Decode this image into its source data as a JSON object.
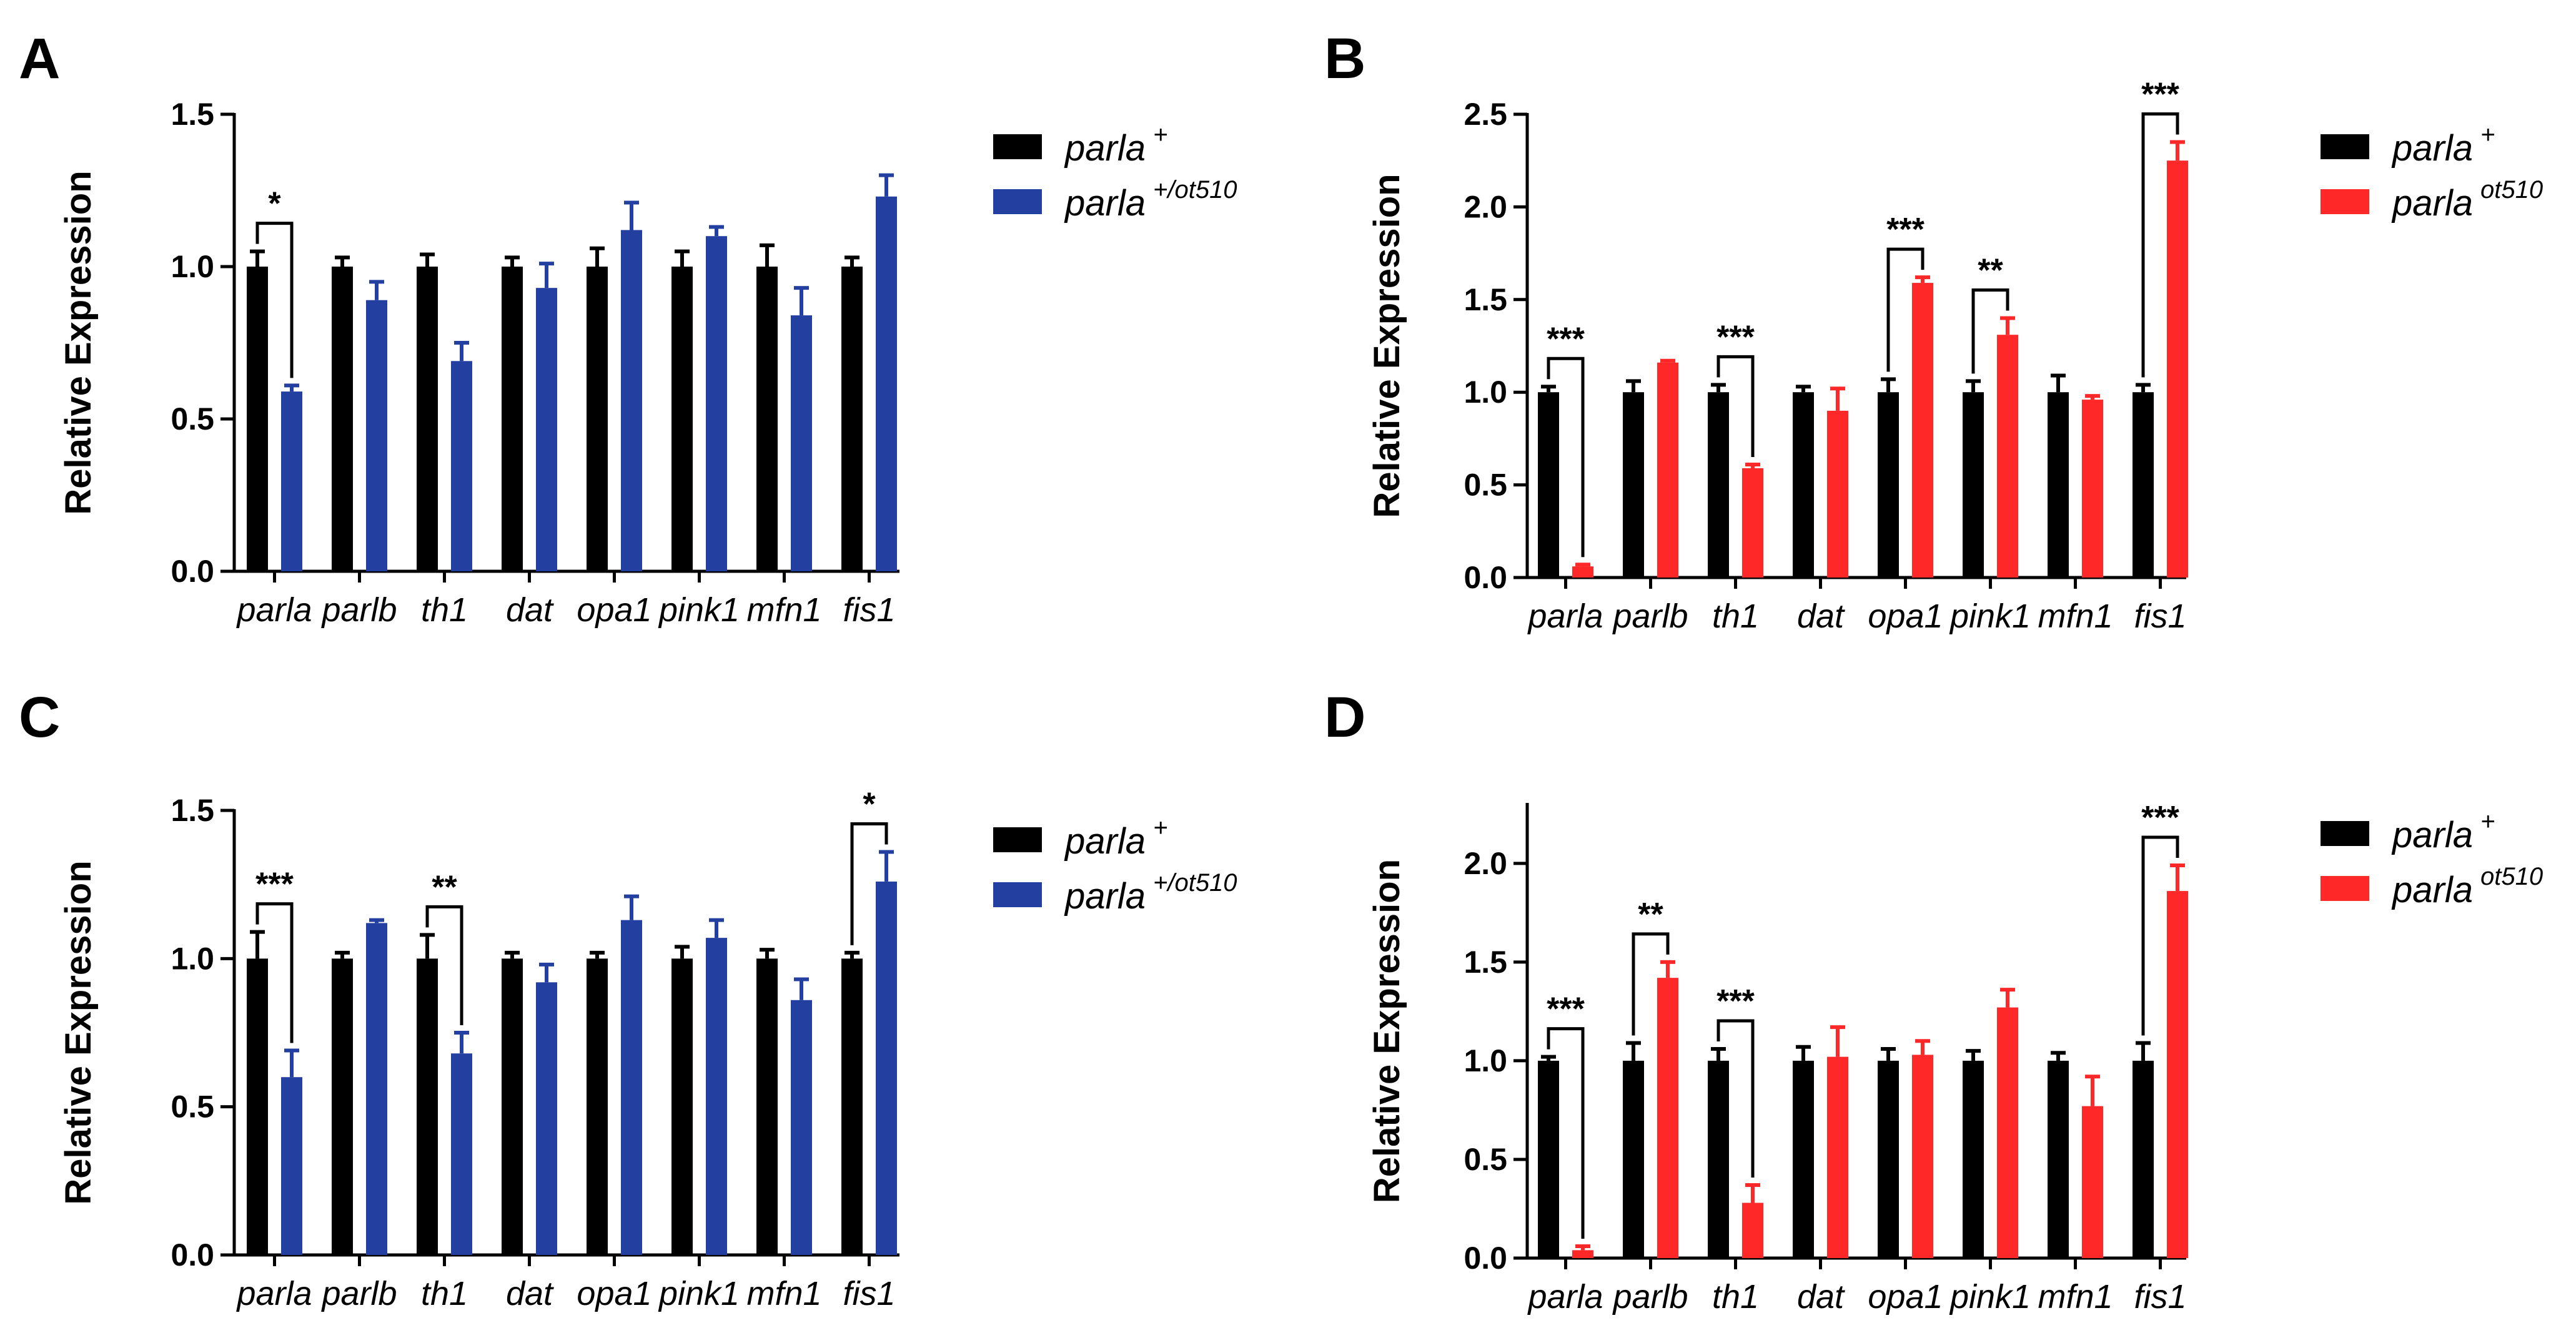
{
  "colors": {
    "wt": "#000000",
    "blue": "#2340A0",
    "red": "#FF2828"
  },
  "chart_data": [
    {
      "panel": "A",
      "type": "bar",
      "ylabel": "Relative Expression",
      "ylim": [
        0,
        1.5
      ],
      "yticks": [
        "0.0",
        "0.5",
        "1.0",
        "1.5"
      ],
      "ytick_values": [
        0,
        0.5,
        1.0,
        1.5
      ],
      "categories": [
        "parla",
        "parlb",
        "th1",
        "dat",
        "opa1",
        "pink1",
        "mfn1",
        "fis1"
      ],
      "series": [
        {
          "name": "parla",
          "sup": "+",
          "color": "#000000",
          "values": [
            1.0,
            1.0,
            1.0,
            1.0,
            1.0,
            1.0,
            1.0,
            1.0
          ],
          "errors": [
            0.05,
            0.03,
            0.04,
            0.03,
            0.06,
            0.05,
            0.07,
            0.03
          ]
        },
        {
          "name": "parla",
          "sup": "+/ot510",
          "color": "#2340A0",
          "values": [
            0.59,
            0.89,
            0.69,
            0.93,
            1.12,
            1.1,
            0.84,
            1.23
          ],
          "errors": [
            0.02,
            0.06,
            0.06,
            0.08,
            0.09,
            0.03,
            0.09,
            0.07
          ]
        }
      ],
      "significance": [
        {
          "index": 0,
          "label": "*"
        }
      ]
    },
    {
      "panel": "B",
      "type": "bar",
      "ylabel": "Relative Expression",
      "ylim": [
        0,
        2.5
      ],
      "yticks": [
        "0.0",
        "0.5",
        "1.0",
        "1.5",
        "2.0",
        "2.5"
      ],
      "ytick_values": [
        0,
        0.5,
        1.0,
        1.5,
        2.0,
        2.5
      ],
      "categories": [
        "parla",
        "parlb",
        "th1",
        "dat",
        "opa1",
        "pink1",
        "mfn1",
        "fis1"
      ],
      "series": [
        {
          "name": "parla",
          "sup": "+",
          "color": "#000000",
          "values": [
            1.0,
            1.0,
            1.0,
            1.0,
            1.0,
            1.0,
            1.0,
            1.0
          ],
          "errors": [
            0.03,
            0.06,
            0.04,
            0.03,
            0.07,
            0.06,
            0.09,
            0.04
          ]
        },
        {
          "name": "parla",
          "sup": "ot510",
          "color": "#FF2828",
          "values": [
            0.06,
            1.16,
            0.59,
            0.9,
            1.59,
            1.31,
            0.96,
            2.25
          ],
          "errors": [
            0.01,
            0.01,
            0.02,
            0.12,
            0.03,
            0.09,
            0.02,
            0.1
          ]
        }
      ],
      "significance": [
        {
          "index": 0,
          "label": "***"
        },
        {
          "index": 2,
          "label": "***"
        },
        {
          "index": 4,
          "label": "***"
        },
        {
          "index": 5,
          "label": "**"
        },
        {
          "index": 7,
          "label": "***"
        }
      ]
    },
    {
      "panel": "C",
      "type": "bar",
      "ylabel": "Relative Expression",
      "ylim": [
        0,
        1.5
      ],
      "yticks": [
        "0.0",
        "0.5",
        "1.0",
        "1.5"
      ],
      "ytick_values": [
        0,
        0.5,
        1.0,
        1.5
      ],
      "categories": [
        "parla",
        "parlb",
        "th1",
        "dat",
        "opa1",
        "pink1",
        "mfn1",
        "fis1"
      ],
      "series": [
        {
          "name": "parla",
          "sup": "+",
          "color": "#000000",
          "values": [
            1.0,
            1.0,
            1.0,
            1.0,
            1.0,
            1.0,
            1.0,
            1.0
          ],
          "errors": [
            0.09,
            0.02,
            0.08,
            0.02,
            0.02,
            0.04,
            0.03,
            0.02
          ]
        },
        {
          "name": "parla",
          "sup": "+/ot510",
          "color": "#2340A0",
          "values": [
            0.6,
            1.12,
            0.68,
            0.92,
            1.13,
            1.07,
            0.86,
            1.26
          ],
          "errors": [
            0.09,
            0.01,
            0.07,
            0.06,
            0.08,
            0.06,
            0.07,
            0.1
          ]
        }
      ],
      "significance": [
        {
          "index": 0,
          "label": "***"
        },
        {
          "index": 2,
          "label": "**"
        },
        {
          "index": 7,
          "label": "*"
        }
      ]
    },
    {
      "panel": "D",
      "type": "bar",
      "ylabel": "Relative Expression",
      "ylim": [
        0,
        2.3
      ],
      "yticks": [
        "0.0",
        "0.5",
        "1.0",
        "1.5",
        "2.0"
      ],
      "ytick_values": [
        0,
        0.5,
        1.0,
        1.5,
        2.0
      ],
      "categories": [
        "parla",
        "parlb",
        "th1",
        "dat",
        "opa1",
        "pink1",
        "mfn1",
        "fis1"
      ],
      "series": [
        {
          "name": "parla",
          "sup": "+",
          "color": "#000000",
          "values": [
            1.0,
            1.0,
            1.0,
            1.0,
            1.0,
            1.0,
            1.0,
            1.0
          ],
          "errors": [
            0.02,
            0.09,
            0.06,
            0.07,
            0.06,
            0.05,
            0.04,
            0.09
          ]
        },
        {
          "name": "parla",
          "sup": "ot510",
          "color": "#FF2828",
          "values": [
            0.04,
            1.42,
            0.28,
            1.02,
            1.03,
            1.27,
            0.77,
            1.86
          ],
          "errors": [
            0.02,
            0.08,
            0.09,
            0.15,
            0.07,
            0.09,
            0.15,
            0.13
          ]
        }
      ],
      "significance": [
        {
          "index": 0,
          "label": "***"
        },
        {
          "index": 1,
          "label": "**"
        },
        {
          "index": 2,
          "label": "***"
        },
        {
          "index": 7,
          "label": "***"
        }
      ]
    }
  ]
}
